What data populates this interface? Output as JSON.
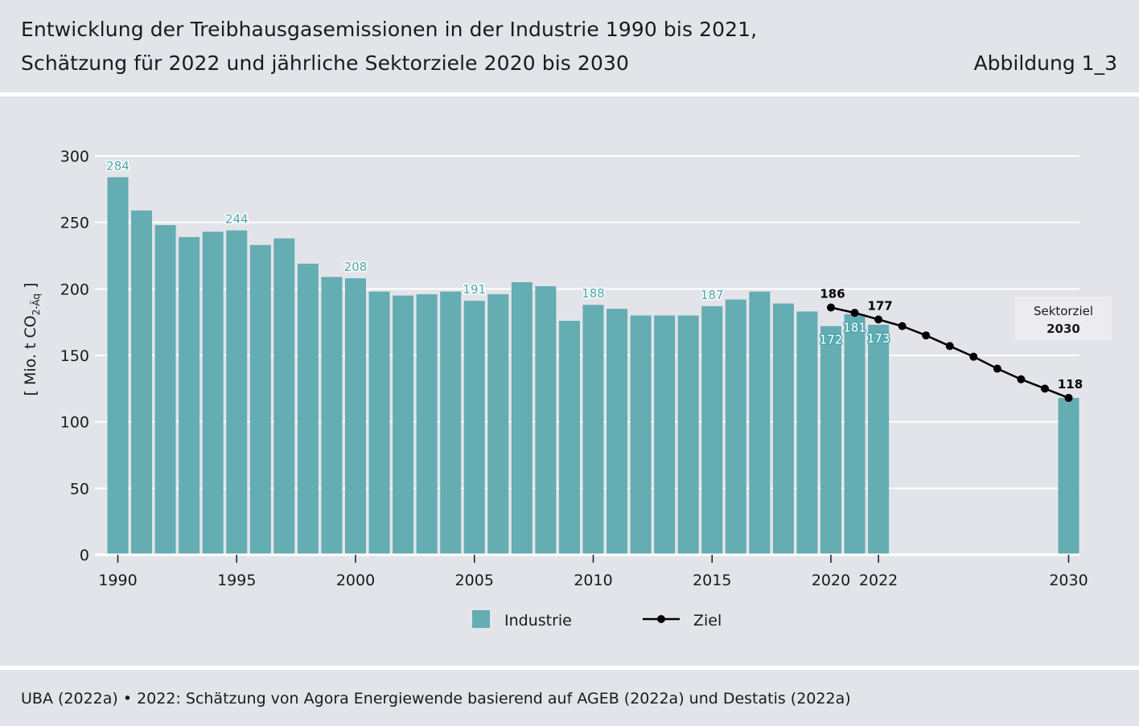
{
  "header": {
    "title_line1": "Entwicklung der Treibhausgasemissionen in der Industrie 1990 bis 2021,",
    "title_line2": "Schätzung für 2022 und jährliche Sektorziele 2020 bis 2030",
    "figure_label": "Abbildung 1_3"
  },
  "source": "UBA (2022a) • 2022: Schätzung von Agora Energiewende basierend auf AGEB (2022a) und Destatis (2022a)",
  "colors": {
    "bar": "#63adb3",
    "line": "#000000",
    "label_teal": "#4aa6ad",
    "background": "#e3e4e9",
    "callout_bg": "#ececf0"
  },
  "chart_data": {
    "type": "bar",
    "title": "Entwicklung der Treibhausgasemissionen in der Industrie 1990 bis 2021, Schätzung für 2022 und jährliche Sektorziele 2020 bis 2030",
    "ylabel_main": "[ Mio. t CO",
    "ylabel_sub": "2-Äq",
    "ylabel_end": "]",
    "ylim": [
      0,
      300
    ],
    "yticks": [
      0,
      50,
      100,
      150,
      200,
      250,
      300
    ],
    "xlim": [
      1990,
      2030
    ],
    "xticks": [
      "1990",
      "1995",
      "2000",
      "2005",
      "2010",
      "2015",
      "2020",
      "2022",
      "2030"
    ],
    "series": [
      {
        "name": "Industrie",
        "type": "bar",
        "x": [
          1990,
          1991,
          1992,
          1993,
          1994,
          1995,
          1996,
          1997,
          1998,
          1999,
          2000,
          2001,
          2002,
          2003,
          2004,
          2005,
          2006,
          2007,
          2008,
          2009,
          2010,
          2011,
          2012,
          2013,
          2014,
          2015,
          2016,
          2017,
          2018,
          2019,
          2020,
          2021,
          2022,
          2030
        ],
        "values": [
          284,
          259,
          248,
          239,
          243,
          244,
          233,
          238,
          219,
          209,
          208,
          198,
          195,
          196,
          198,
          191,
          196,
          205,
          202,
          176,
          188,
          185,
          180,
          180,
          180,
          187,
          192,
          198,
          189,
          183,
          172,
          181,
          173,
          118
        ]
      },
      {
        "name": "Ziel",
        "type": "line",
        "x": [
          2020,
          2021,
          2022,
          2023,
          2024,
          2025,
          2026,
          2027,
          2028,
          2029,
          2030
        ],
        "values": [
          186,
          182,
          177,
          172,
          165,
          157,
          149,
          140,
          132,
          125,
          118
        ]
      }
    ],
    "bar_labels": [
      {
        "year": 1990,
        "text": "284"
      },
      {
        "year": 1995,
        "text": "244"
      },
      {
        "year": 2000,
        "text": "208"
      },
      {
        "year": 2005,
        "text": "191"
      },
      {
        "year": 2010,
        "text": "188"
      },
      {
        "year": 2015,
        "text": "187"
      },
      {
        "year": 2020,
        "text": "172"
      },
      {
        "year": 2021,
        "text": "181"
      },
      {
        "year": 2022,
        "text": "173"
      }
    ],
    "line_labels": [
      {
        "year": 2020,
        "text": "186"
      },
      {
        "year": 2022,
        "text": "177"
      },
      {
        "year": 2030,
        "text": "118"
      }
    ],
    "annotation": {
      "line1": "Sektorziel",
      "line2": "2030"
    },
    "legend": [
      {
        "name": "Industrie",
        "kind": "bar"
      },
      {
        "name": "Ziel",
        "kind": "line"
      }
    ]
  }
}
